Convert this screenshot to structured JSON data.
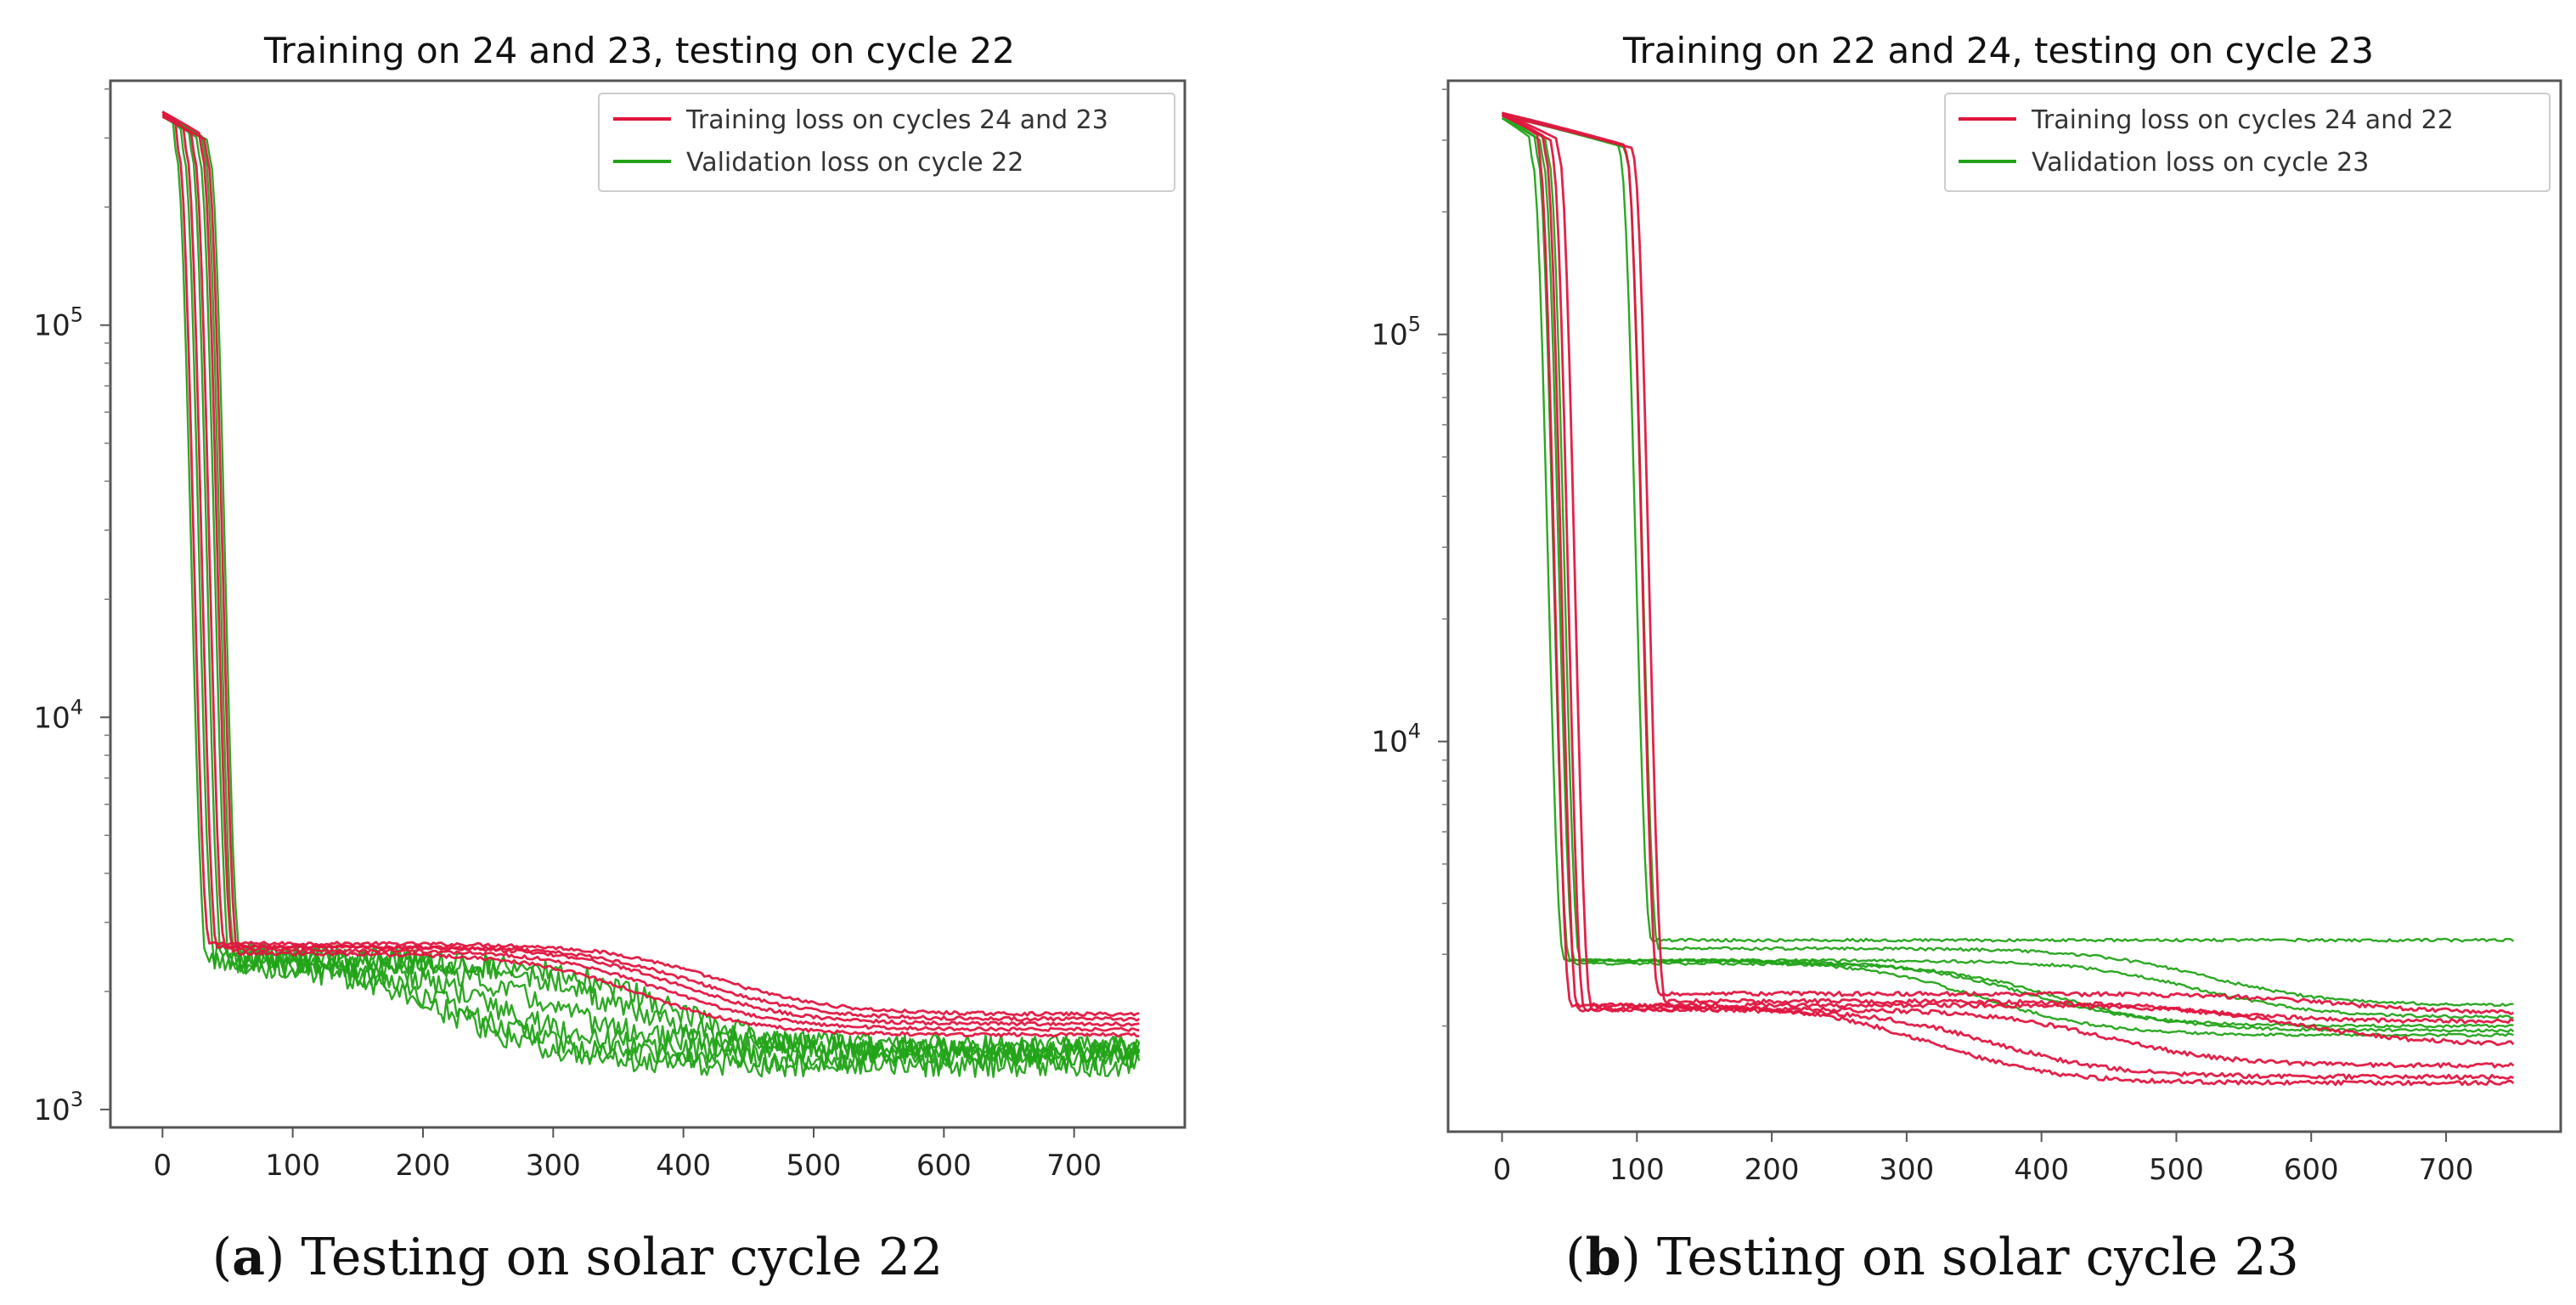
{
  "colors": {
    "training": "#e0163f",
    "validation": "#22a318",
    "frame": "#555555"
  },
  "chart_data": [
    {
      "id": "a",
      "type": "line",
      "title": "Training on 24 and 23, testing on cycle 22",
      "caption_label": "a",
      "caption_text": "Testing on solar cycle 22",
      "yscale": "log",
      "xlim": [
        -40,
        785
      ],
      "ylim": [
        900,
        420000
      ],
      "xticks": [
        0,
        100,
        200,
        300,
        400,
        500,
        600,
        700
      ],
      "xtick_labels": [
        "0",
        "100",
        "200",
        "300",
        "400",
        "500",
        "600",
        "700"
      ],
      "yticks": [
        1000,
        10000,
        100000
      ],
      "ytick_labels": [
        {
          "base": "10",
          "exp": "3"
        },
        {
          "base": "10",
          "exp": "4"
        },
        {
          "base": "10",
          "exp": "5"
        }
      ],
      "legend": {
        "position": "top-right",
        "entries": [
          {
            "label": "Training loss on cycles 24 and 23",
            "color": "#e0163f"
          },
          {
            "label": "Validation loss on cycle 22",
            "color": "#22a318"
          }
        ]
      },
      "series": [
        {
          "name": "Training loss on cycles 24 and 23",
          "color": "#e0163f",
          "noise": 0.01,
          "runs": [
            {
              "start": 350000,
              "drop": 30,
              "plateau": 2650,
              "end": 1750,
              "decay": 380
            },
            {
              "start": 350000,
              "drop": 36,
              "plateau": 2600,
              "end": 1700,
              "decay": 360
            },
            {
              "start": 345000,
              "drop": 42,
              "plateau": 2600,
              "end": 1650,
              "decay": 340
            },
            {
              "start": 350000,
              "drop": 48,
              "plateau": 2550,
              "end": 1600,
              "decay": 320
            },
            {
              "start": 340000,
              "drop": 52,
              "plateau": 2500,
              "end": 1550,
              "decay": 300
            }
          ]
        },
        {
          "name": "Validation loss on cycle 22",
          "color": "#22a318",
          "noise": 0.07,
          "runs": [
            {
              "start": 350000,
              "drop": 28,
              "plateau": 2500,
              "end": 1450,
              "decay": 240
            },
            {
              "start": 345000,
              "drop": 34,
              "plateau": 2450,
              "end": 1400,
              "decay": 200
            },
            {
              "start": 350000,
              "drop": 40,
              "plateau": 2400,
              "end": 1350,
              "decay": 170
            },
            {
              "start": 340000,
              "drop": 46,
              "plateau": 2450,
              "end": 1450,
              "decay": 280
            },
            {
              "start": 345000,
              "drop": 50,
              "plateau": 2400,
              "end": 1400,
              "decay": 320
            },
            {
              "start": 340000,
              "drop": 54,
              "plateau": 2350,
              "end": 1300,
              "decay": 150
            }
          ]
        }
      ]
    },
    {
      "id": "b",
      "type": "line",
      "title": "Training on 22 and 24, testing on cycle 23",
      "caption_label": "b",
      "caption_text": "Testing on solar cycle 23",
      "yscale": "log",
      "xlim": [
        -40,
        785
      ],
      "ylim": [
        1100,
        420000
      ],
      "xticks": [
        0,
        100,
        200,
        300,
        400,
        500,
        600,
        700
      ],
      "xtick_labels": [
        "0",
        "100",
        "200",
        "300",
        "400",
        "500",
        "600",
        "700"
      ],
      "yticks": [
        10000,
        100000
      ],
      "ytick_labels": [
        {
          "base": "10",
          "exp": "4"
        },
        {
          "base": "10",
          "exp": "5"
        }
      ],
      "legend": {
        "position": "top-right",
        "entries": [
          {
            "label": "Training loss on cycles 24 and 22",
            "color": "#e0163f"
          },
          {
            "label": "Validation loss on cycle 23",
            "color": "#22a318"
          }
        ]
      },
      "series": [
        {
          "name": "Training loss on cycles 24 and 22",
          "color": "#e0163f",
          "noise": 0.012,
          "runs": [
            {
              "start": 350000,
              "drop": 45,
              "plateau": 2250,
              "end": 1450,
              "decay": 260
            },
            {
              "start": 350000,
              "drop": 50,
              "plateau": 2200,
              "end": 1500,
              "decay": 300
            },
            {
              "start": 345000,
              "drop": 55,
              "plateau": 2200,
              "end": 1600,
              "decay": 380
            },
            {
              "start": 350000,
              "drop": 60,
              "plateau": 2250,
              "end": 1800,
              "decay": 520
            },
            {
              "start": 350000,
              "drop": 110,
              "plateau": 2400,
              "end": 2150,
              "decay": 500
            },
            {
              "start": 345000,
              "drop": 115,
              "plateau": 2300,
              "end": 2050,
              "decay": 400
            }
          ]
        },
        {
          "name": "Validation loss on cycle 23",
          "color": "#22a318",
          "noise": 0.008,
          "runs": [
            {
              "start": 340000,
              "drop": 40,
              "plateau": 2900,
              "end": 1900,
              "decay": 300
            },
            {
              "start": 345000,
              "drop": 44,
              "plateau": 2900,
              "end": 2000,
              "decay": 330
            },
            {
              "start": 340000,
              "drop": 48,
              "plateau": 2850,
              "end": 1950,
              "decay": 350
            },
            {
              "start": 345000,
              "drop": 52,
              "plateau": 2900,
              "end": 2100,
              "decay": 450
            },
            {
              "start": 350000,
              "drop": 105,
              "plateau": 3250,
              "end": 2850,
              "decay": 900
            },
            {
              "start": 345000,
              "drop": 110,
              "plateau": 3100,
              "end": 2250,
              "decay": 400
            }
          ]
        }
      ]
    }
  ]
}
